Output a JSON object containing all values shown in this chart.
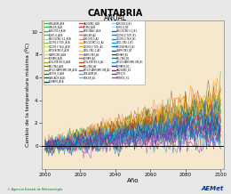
{
  "title": "CANTABRIA",
  "subtitle": "ANUAL",
  "xlabel": "Año",
  "ylabel": "Cambio de la temperatura máxima (ºC)",
  "xlim": [
    1998,
    2102
  ],
  "ylim": [
    -2,
    11
  ],
  "yticks": [
    0,
    2,
    4,
    6,
    8,
    10
  ],
  "xticks": [
    2000,
    2020,
    2040,
    2060,
    2080,
    2100
  ],
  "background_color": "#f5e8cc",
  "fig_background": "#e8e8e8",
  "legend_entries": [
    [
      "GOS-AOM_A1B",
      "#3cb34a"
    ],
    [
      "GOS-ER_A1B",
      "#3cb34a"
    ],
    [
      "INM-CM3.0_A1B",
      "#3cb34a"
    ],
    [
      "ECHO-G_A1B",
      "#66bb6a"
    ],
    [
      "MRI-CGCM2.3.2_A1B",
      "#a5d6a7"
    ],
    [
      "CGCM3.1(T47)_A1B",
      "#8bc34a"
    ],
    [
      "CGCM3.1(T63)_A1B",
      "#c6e03b"
    ],
    [
      "BCCR-BCM2.0_A1B",
      "#d4e157"
    ],
    [
      "CNRM-CM3_A1B",
      "#cddc39"
    ],
    [
      "EGMAM_A1B",
      "#afb42b"
    ],
    [
      "INGV-SINTEX-G_A1B",
      "#9e9d24"
    ],
    [
      "PSL-CM4_A1B",
      "#827717"
    ],
    [
      "MPI-ECHAM5/MPI-OM_A1B",
      "#558b2f"
    ],
    [
      "CNCM3_0_A1B",
      "#33691e"
    ],
    [
      "GISS-AOM_A1B",
      "#1b5e20"
    ],
    [
      "EGMAM2_A1B",
      "#004d40"
    ],
    [
      "HADGEM2_A1B",
      "#f44336"
    ],
    [
      "IPCM4_A1B",
      "#e53935"
    ],
    [
      "MPECHASC_A1B",
      "#ef5350"
    ],
    [
      "GISS-ER_A2",
      "#ff7043"
    ],
    [
      "INM-CM3.0_A2",
      "#ff8a65"
    ],
    [
      "MRI-CGCM2.3.2_A2",
      "#ffa726"
    ],
    [
      "CGCM3.1(T47)_A2",
      "#ffb300"
    ],
    [
      "GFDL-CM2.1_A2",
      "#ffc107"
    ],
    [
      "CNRM-CM3_A2",
      "#ff9800"
    ],
    [
      "EGMAM_A2",
      "#e65100"
    ],
    [
      "INGV-SINTEX-G_A2",
      "#d84315"
    ],
    [
      "PSL-CM4_A2",
      "#bf360c"
    ],
    [
      "MPI-ECHAM5/MPI-OM_A2",
      "#a0522d"
    ],
    [
      "GOS-AOM_B1",
      "#42a5f5"
    ],
    [
      "GOS-ER_B1",
      "#64b5f6"
    ],
    [
      "INM-CM3.0_B1",
      "#90caf9"
    ],
    [
      "ECHO-G_B1",
      "#bbdefb"
    ],
    [
      "MRI-CGCM2.3.2_B1",
      "#1565c0"
    ],
    [
      "CGCM3.1(T47)_B1",
      "#1976d2"
    ],
    [
      "CGCM3.1(T63)_B1",
      "#1e88e5"
    ],
    [
      "GFDL-CM2.1_B1",
      "#039be5"
    ],
    [
      "BCCR-BCM2.0_B1",
      "#0277bd"
    ],
    [
      "CNRM-CM3_B1",
      "#01579b"
    ],
    [
      "EGMAM_B1",
      "#006064"
    ],
    [
      "PSL-CM4_B1",
      "#00838f"
    ],
    [
      "MPI-ECHAM5/MPI-OM_B1",
      "#00acc1"
    ],
    [
      "EGMAM2_E1",
      "#6a1b9a"
    ],
    [
      "HADGEM2_E1",
      "#7b1fa2"
    ],
    [
      "PCM4_E1",
      "#8e24aa"
    ],
    [
      "MPEHOC_E1",
      "#ab47bc"
    ]
  ],
  "hline_color": "#000000",
  "x_start": 2000,
  "x_end": 2100
}
